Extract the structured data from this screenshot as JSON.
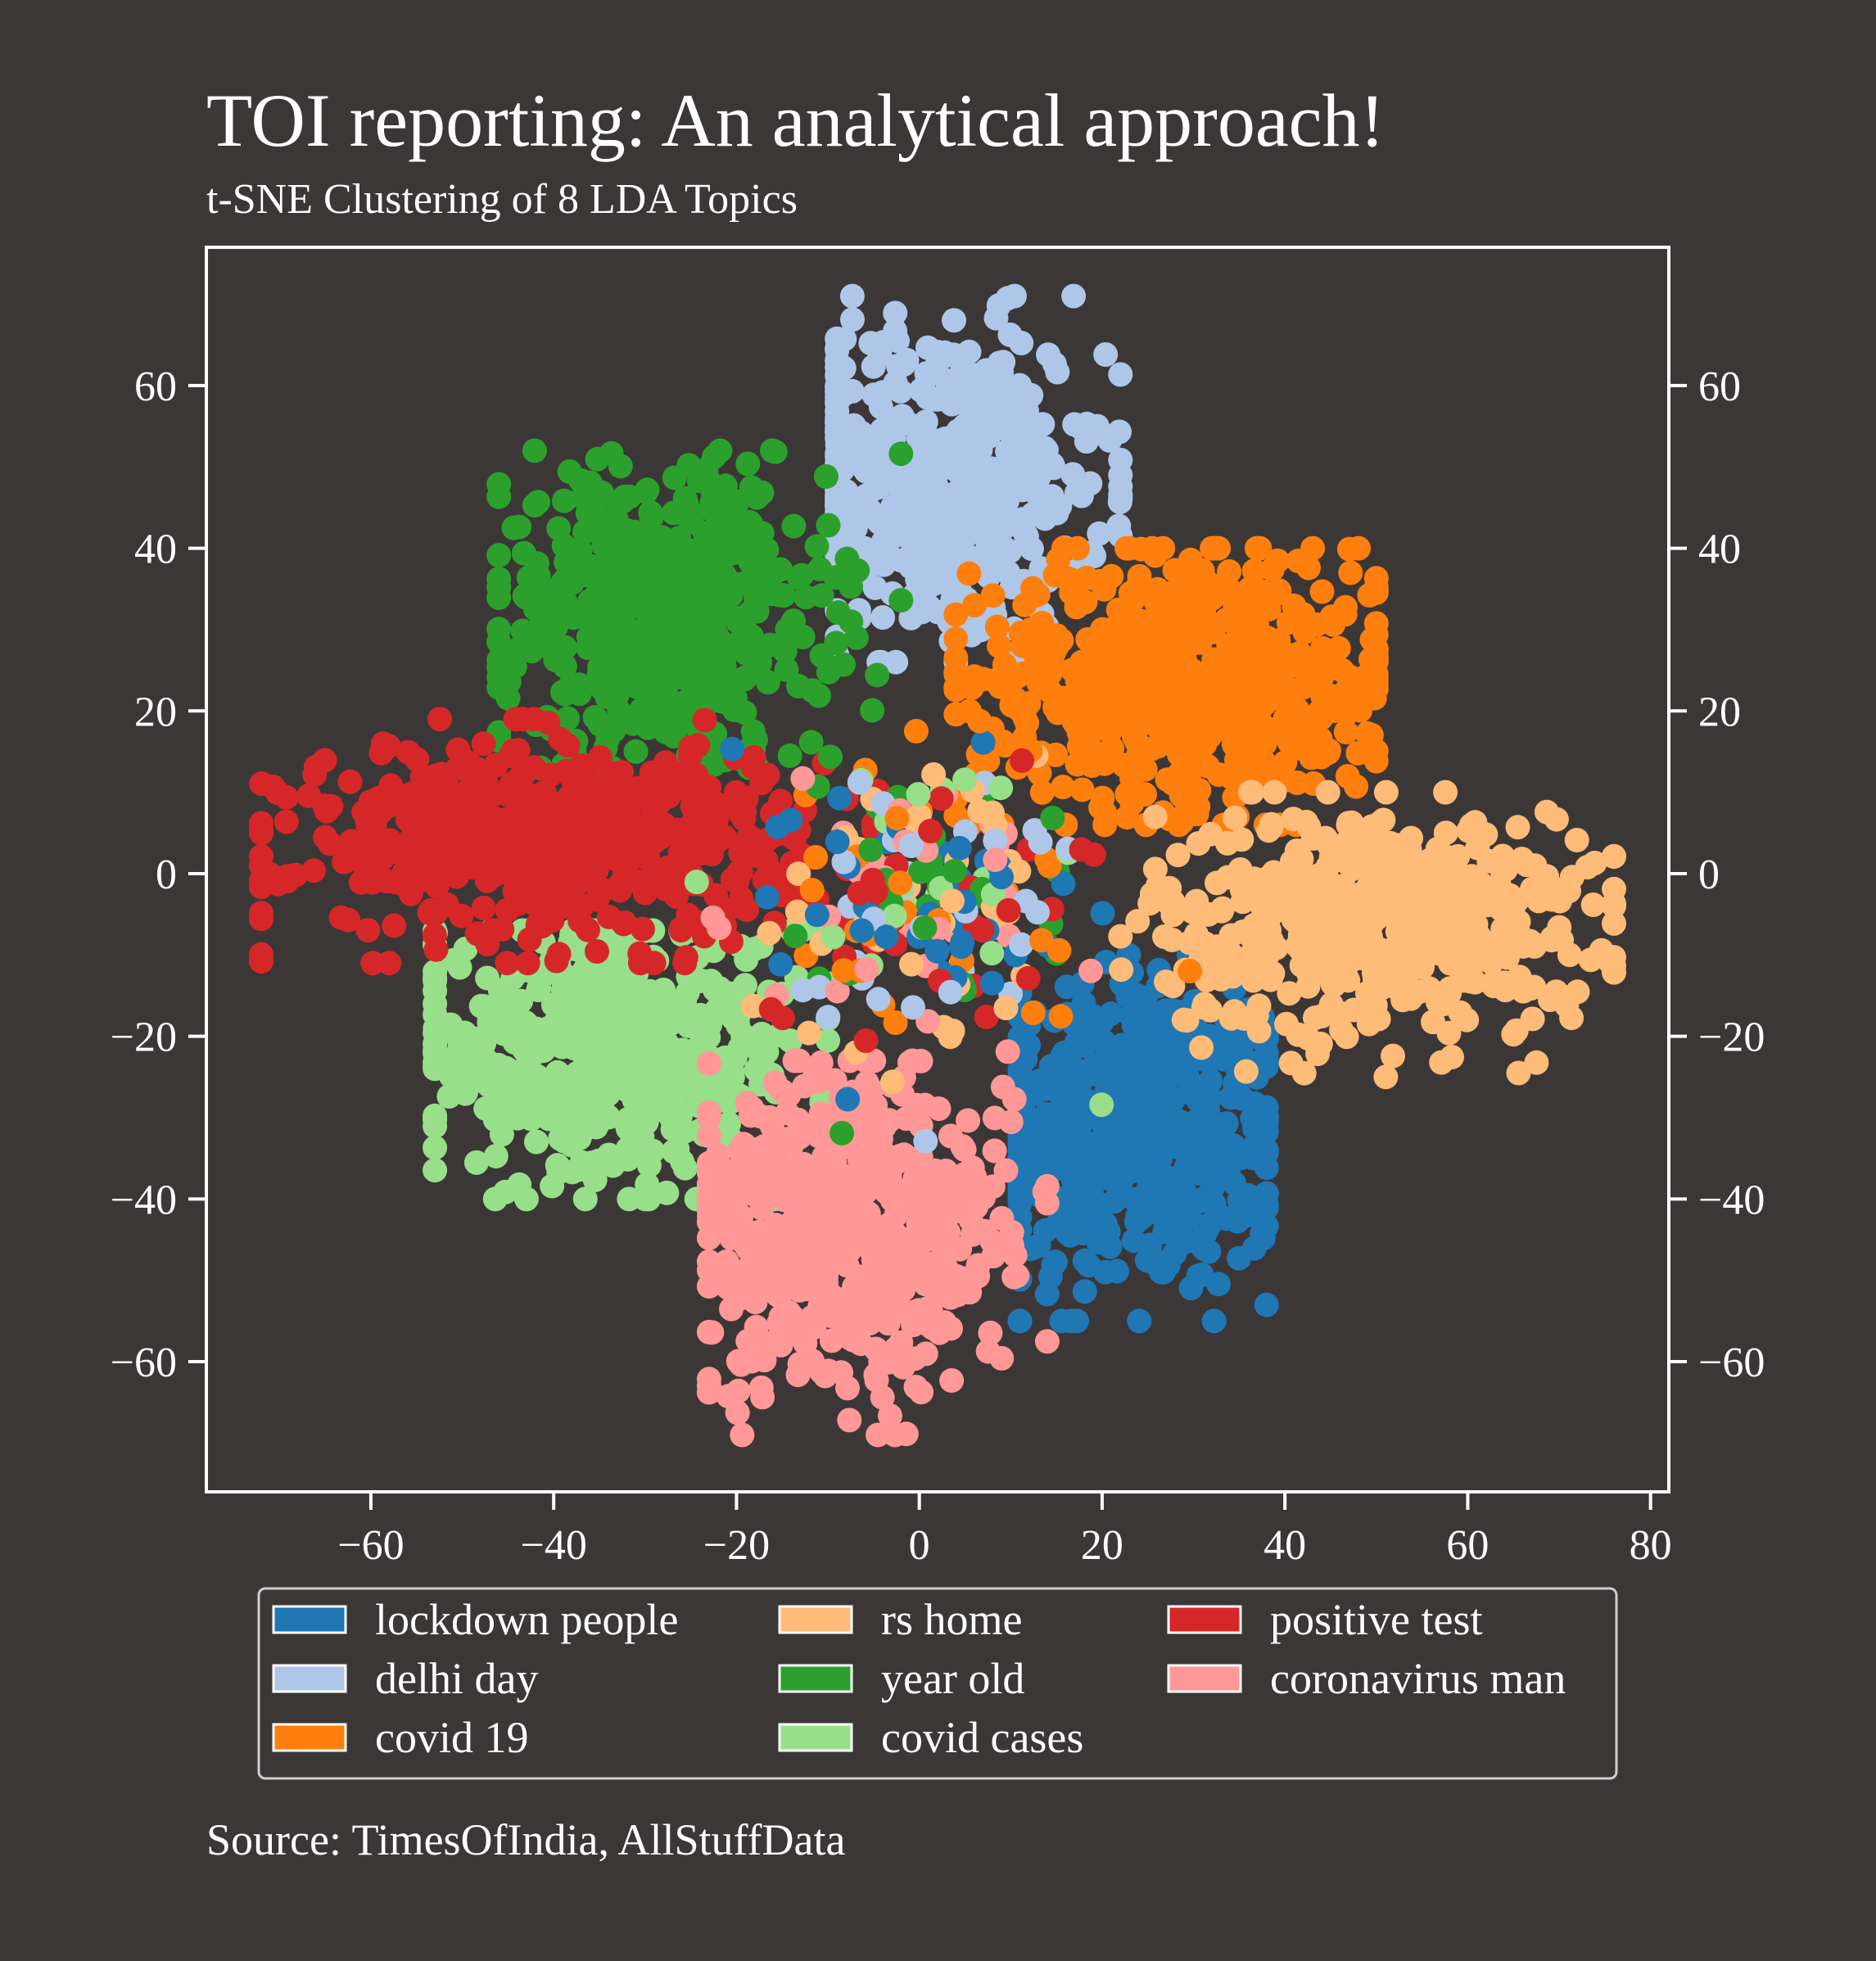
{
  "chart_data": {
    "type": "scatter",
    "title": "TOI reporting: An analytical approach!",
    "subtitle": "t-SNE Clustering of 8 LDA Topics",
    "source": "Source: TimesOfIndia, AllStuffData",
    "xlabel": "",
    "ylabel": "",
    "xlim": [
      -78,
      82
    ],
    "ylim": [
      -76,
      77
    ],
    "x_ticks": [
      -60,
      -40,
      -20,
      0,
      20,
      40,
      60,
      80
    ],
    "x_tick_labels": [
      "−60",
      "−40",
      "−20",
      "0",
      "20",
      "40",
      "60",
      "80"
    ],
    "y_ticks": [
      -60,
      -40,
      -20,
      0,
      20,
      40,
      60
    ],
    "y_tick_labels": [
      "−60",
      "−40",
      "−20",
      "0",
      "20",
      "40",
      "60"
    ],
    "grid": false,
    "legend_position": "bottom",
    "series": [
      {
        "name": "lockdown people",
        "color": "#1f77b4",
        "center": [
          24,
          -32
        ],
        "spread": [
          9,
          10
        ],
        "count": 520,
        "extent": {
          "x": [
            11,
            38
          ],
          "y": [
            -55,
            -10
          ]
        }
      },
      {
        "name": "delhi day",
        "color": "#aec7e8",
        "center": [
          2,
          48
        ],
        "spread": [
          9,
          10
        ],
        "count": 480,
        "extent": {
          "x": [
            -9,
            22
          ],
          "y": [
            26,
            71
          ]
        }
      },
      {
        "name": "covid 19",
        "color": "#ff7f0e",
        "center": [
          30,
          24
        ],
        "spread": [
          12,
          8
        ],
        "count": 600,
        "extent": {
          "x": [
            4,
            50
          ],
          "y": [
            6,
            40
          ]
        }
      },
      {
        "name": "rs home",
        "color": "#ffbb78",
        "center": [
          50,
          -6
        ],
        "spread": [
          12,
          7
        ],
        "count": 520,
        "extent": {
          "x": [
            22,
            76
          ],
          "y": [
            -25,
            10
          ]
        }
      },
      {
        "name": "year old",
        "color": "#2ca02c",
        "center": [
          -28,
          32
        ],
        "spread": [
          9,
          9
        ],
        "count": 520,
        "extent": {
          "x": [
            -46,
            -2
          ],
          "y": [
            13,
            52
          ]
        }
      },
      {
        "name": "covid cases",
        "color": "#98df8a",
        "center": [
          -34,
          -22
        ],
        "spread": [
          11,
          8
        ],
        "count": 520,
        "extent": {
          "x": [
            -53,
            -10
          ],
          "y": [
            -40,
            -7
          ]
        }
      },
      {
        "name": "positive test",
        "color": "#d62728",
        "center": [
          -40,
          4
        ],
        "spread": [
          14,
          6
        ],
        "count": 560,
        "extent": {
          "x": [
            -72,
            -5
          ],
          "y": [
            -11,
            19
          ]
        }
      },
      {
        "name": "coronavirus man",
        "color": "#ff9896",
        "center": [
          -8,
          -44
        ],
        "spread": [
          9,
          10
        ],
        "count": 500,
        "extent": {
          "x": [
            -23,
            14
          ],
          "y": [
            -69,
            -23
          ]
        }
      }
    ],
    "legend": [
      {
        "name": "lockdown people",
        "color": "#1f77b4"
      },
      {
        "name": "delhi day",
        "color": "#aec7e8"
      },
      {
        "name": "covid 19",
        "color": "#ff7f0e"
      },
      {
        "name": "rs home",
        "color": "#ffbb78"
      },
      {
        "name": "year old",
        "color": "#2ca02c"
      },
      {
        "name": "covid cases",
        "color": "#98df8a"
      },
      {
        "name": "positive test",
        "color": "#d62728"
      },
      {
        "name": "coronavirus man",
        "color": "#ff9896"
      }
    ]
  },
  "colors": {
    "background": "#3b3737",
    "axis": "#ffffff",
    "legend_border": "#cfcfcf"
  }
}
